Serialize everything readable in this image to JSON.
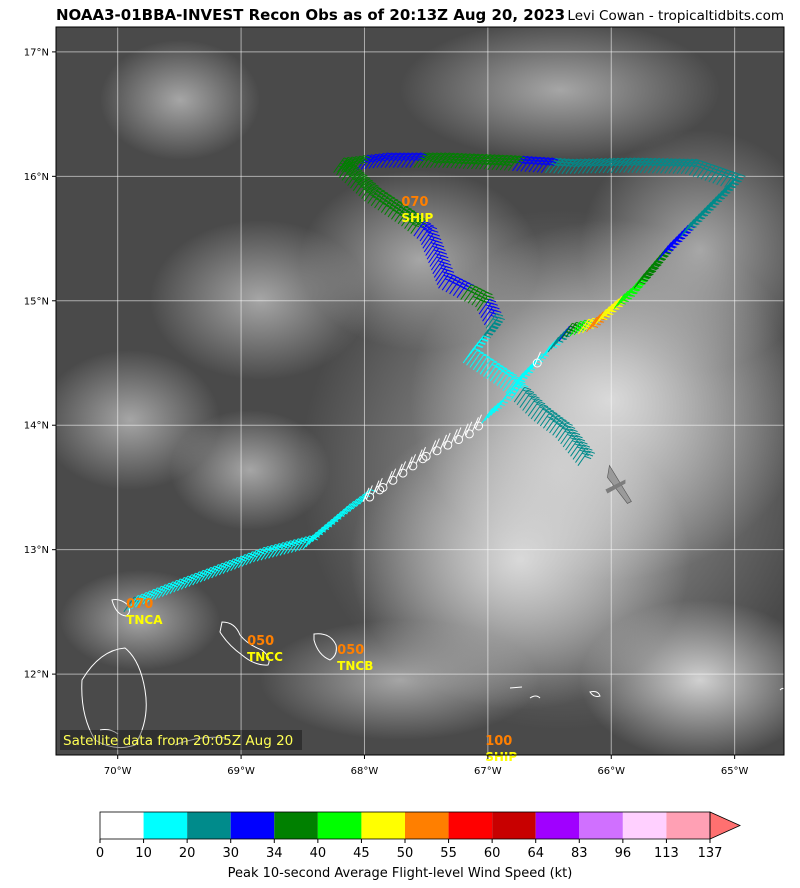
{
  "header": {
    "title": "NOAA3-01BBA-INVEST Recon Obs as of 20:13Z Aug 20, 2023",
    "credit": "Levi Cowan - tropicaltidbits.com"
  },
  "map": {
    "lon_range": [
      -70.5,
      -64.6
    ],
    "lat_range": [
      11.35,
      17.2
    ],
    "lon_ticks": [
      {
        "value": -70,
        "label": "70°W"
      },
      {
        "value": -69,
        "label": "69°W"
      },
      {
        "value": -68,
        "label": "68°W"
      },
      {
        "value": -67,
        "label": "67°W"
      },
      {
        "value": -66,
        "label": "66°W"
      },
      {
        "value": -65,
        "label": "65°W"
      }
    ],
    "lat_ticks": [
      {
        "value": 12,
        "label": "12°N"
      },
      {
        "value": 13,
        "label": "13°N"
      },
      {
        "value": 14,
        "label": "14°N"
      },
      {
        "value": 15,
        "label": "15°N"
      },
      {
        "value": 16,
        "label": "16°N"
      },
      {
        "value": 17,
        "label": "17°N"
      }
    ],
    "grid": true,
    "satellite_note": "Satellite data from 20:05Z Aug 20"
  },
  "stations": [
    {
      "id": "TNCA",
      "value": "070",
      "lon": -69.98,
      "lat": 12.5
    },
    {
      "id": "TNCC",
      "value": "050",
      "lon": -69.0,
      "lat": 12.2
    },
    {
      "id": "TNCB",
      "value": "050",
      "lon": -68.27,
      "lat": 12.13
    },
    {
      "id": "SHIP",
      "value": "100",
      "lon": -67.07,
      "lat": 11.4
    },
    {
      "id": "SHIP",
      "value": "070",
      "lon": -67.75,
      "lat": 15.73
    }
  ],
  "flight_path": [
    {
      "lon": -69.95,
      "lat": 12.5,
      "kt": 20
    },
    {
      "lon": -69.7,
      "lat": 12.6,
      "kt": 15
    },
    {
      "lon": -69.3,
      "lat": 12.75,
      "kt": 18
    },
    {
      "lon": -68.9,
      "lat": 12.9,
      "kt": 16
    },
    {
      "lon": -68.5,
      "lat": 13.0,
      "kt": 15
    },
    {
      "lon": -68.2,
      "lat": 13.25,
      "kt": 12
    },
    {
      "lon": -67.85,
      "lat": 13.5,
      "kt": 8
    },
    {
      "lon": -67.5,
      "lat": 13.75,
      "kt": 6
    },
    {
      "lon": -67.15,
      "lat": 13.93,
      "kt": 7
    },
    {
      "lon": -66.95,
      "lat": 14.1,
      "kt": 14
    },
    {
      "lon": -66.8,
      "lat": 14.3,
      "kt": 17
    },
    {
      "lon": -66.6,
      "lat": 14.5,
      "kt": 8
    },
    {
      "lon": -66.4,
      "lat": 14.7,
      "kt": 36
    },
    {
      "lon": -66.2,
      "lat": 14.75,
      "kt": 52
    },
    {
      "lon": -65.9,
      "lat": 15.0,
      "kt": 42
    },
    {
      "lon": -65.6,
      "lat": 15.35,
      "kt": 33
    },
    {
      "lon": -65.3,
      "lat": 15.65,
      "kt": 27
    },
    {
      "lon": -65.05,
      "lat": 15.9,
      "kt": 25
    },
    {
      "lon": -65.4,
      "lat": 16.02,
      "kt": 25
    },
    {
      "lon": -65.9,
      "lat": 16.03,
      "kt": 25
    },
    {
      "lon": -66.4,
      "lat": 16.02,
      "kt": 28
    },
    {
      "lon": -66.9,
      "lat": 16.05,
      "kt": 35
    },
    {
      "lon": -67.4,
      "lat": 16.07,
      "kt": 36
    },
    {
      "lon": -67.9,
      "lat": 16.07,
      "kt": 31
    },
    {
      "lon": -68.25,
      "lat": 16.03,
      "kt": 37
    },
    {
      "lon": -68.0,
      "lat": 15.8,
      "kt": 36
    },
    {
      "lon": -67.7,
      "lat": 15.6,
      "kt": 38
    },
    {
      "lon": -67.55,
      "lat": 15.48,
      "kt": 31
    },
    {
      "lon": -67.4,
      "lat": 15.1,
      "kt": 31
    },
    {
      "lon": -67.1,
      "lat": 14.95,
      "kt": 36
    },
    {
      "lon": -67.0,
      "lat": 14.75,
      "kt": 28
    },
    {
      "lon": -67.2,
      "lat": 14.5,
      "kt": 13
    },
    {
      "lon": -66.9,
      "lat": 14.3,
      "kt": 17
    },
    {
      "lon": -66.65,
      "lat": 14.05,
      "kt": 24
    },
    {
      "lon": -66.45,
      "lat": 13.9,
      "kt": 27
    },
    {
      "lon": -66.25,
      "lat": 13.65,
      "kt": 30
    }
  ],
  "aircraft": {
    "lon": -65.95,
    "lat": 13.5,
    "icon": "airplane-icon"
  },
  "colorbar": {
    "label": "Peak 10-second Average Flight-level Wind Speed (kt)",
    "bins": [
      {
        "min": 0,
        "max": 10,
        "color": "#ffffff"
      },
      {
        "min": 10,
        "max": 20,
        "color": "#00ffff"
      },
      {
        "min": 20,
        "max": 30,
        "color": "#008b8b"
      },
      {
        "min": 30,
        "max": 34,
        "color": "#0000ff"
      },
      {
        "min": 34,
        "max": 40,
        "color": "#008000"
      },
      {
        "min": 40,
        "max": 45,
        "color": "#00ff00"
      },
      {
        "min": 45,
        "max": 50,
        "color": "#ffff00"
      },
      {
        "min": 50,
        "max": 55,
        "color": "#ff7f00"
      },
      {
        "min": 55,
        "max": 60,
        "color": "#ff0000"
      },
      {
        "min": 60,
        "max": 64,
        "color": "#c80000"
      },
      {
        "min": 64,
        "max": 83,
        "color": "#a000ff"
      },
      {
        "min": 83,
        "max": 96,
        "color": "#d070ff"
      },
      {
        "min": 96,
        "max": 113,
        "color": "#ffd0ff"
      },
      {
        "min": 113,
        "max": 137,
        "color": "#ffa0b4"
      }
    ],
    "extend_color": "#ff7070",
    "ticks": [
      "0",
      "10",
      "20",
      "30",
      "34",
      "40",
      "45",
      "50",
      "55",
      "60",
      "64",
      "83",
      "96",
      "113",
      "137"
    ]
  }
}
